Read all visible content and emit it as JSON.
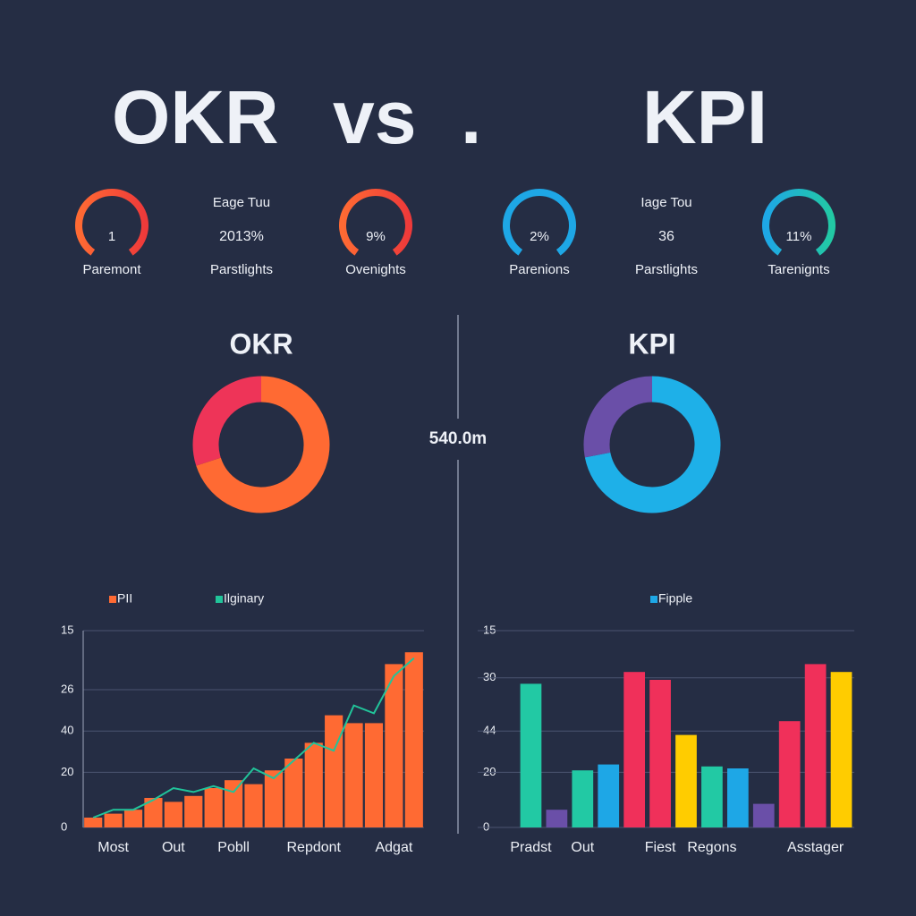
{
  "header": {
    "title": [
      "OKR",
      "vs",
      ".",
      "KPI"
    ]
  },
  "stats": [
    {
      "gauge": "1",
      "caption": "Paremont"
    },
    {
      "label": "Eage Tuu",
      "value": "2013%",
      "caption": "Parstlights"
    },
    {
      "gauge": "9%",
      "caption": "Ovenights"
    },
    {
      "gauge": "2%",
      "caption": "Parenions"
    },
    {
      "label": "Iage Tou",
      "value": "36",
      "caption": "Parstlights"
    },
    {
      "gauge": "11%",
      "caption": "Tarenignts"
    }
  ],
  "center_label": "540.0m",
  "chart_data": [
    {
      "type": "pie",
      "title": "OKR",
      "categories": [
        null,
        null
      ],
      "values": [
        70,
        30
      ],
      "colors": [
        "#ff6a33",
        "#ee3458"
      ]
    },
    {
      "type": "pie",
      "title": "KPI",
      "categories": [
        null,
        null
      ],
      "values": [
        72,
        28
      ],
      "colors": [
        "#1eb0e8",
        "#6a4fa8"
      ]
    },
    {
      "type": "bar",
      "categories": [
        null,
        "Most",
        null,
        null,
        "Out",
        null,
        null,
        "Pobll",
        null,
        null,
        null,
        "Repdont",
        null,
        null,
        null,
        "Adgat",
        null
      ],
      "series": [
        {
          "name": "PII",
          "color": "#ff6a33",
          "values": [
            5,
            7,
            9,
            15,
            13,
            16,
            20,
            24,
            22,
            29,
            35,
            43,
            57,
            53,
            53,
            83,
            89
          ]
        },
        {
          "name": "Ilginary",
          "type": "line",
          "color": "#21c49a",
          "values": [
            5,
            9,
            9,
            14,
            20,
            18,
            21,
            18,
            30,
            25,
            34,
            43,
            39,
            62,
            58,
            77,
            86
          ]
        }
      ],
      "ylim": [
        0,
        100
      ],
      "yticks": [
        0,
        {
          "value": 28,
          "label": "20"
        },
        {
          "value": 49,
          "label": "40"
        },
        {
          "value": 70,
          "label": "26"
        },
        {
          "value": 100,
          "label": "15"
        }
      ],
      "grid": true
    },
    {
      "type": "bar",
      "categories": [
        "Pradst",
        null,
        "Out",
        null,
        null,
        "Fiest",
        null,
        "Regons",
        null,
        null,
        null,
        "Asstager",
        null
      ],
      "series": [
        {
          "name": "Fipple",
          "color": "#1ea7e6",
          "values": [
            73,
            9,
            29,
            32,
            79,
            75,
            47,
            31,
            30,
            12,
            54,
            83,
            79
          ],
          "colors": [
            "#22c9a4",
            "#6a4fa8",
            "#22c9a4",
            "#1ea7e6",
            "#f0305a",
            "#f0305a",
            "#ffcc00",
            "#22c9a4",
            "#1ea7e6",
            "#6a4fa8",
            "#f0305a",
            "#f0305a",
            "#ffcc00"
          ]
        }
      ],
      "ylim": [
        0,
        100
      ],
      "yticks": [
        0,
        {
          "value": 28,
          "label": "20"
        },
        {
          "value": 49,
          "label": "44"
        },
        {
          "value": 76,
          "label": "30"
        },
        {
          "value": 100,
          "label": "15"
        }
      ],
      "grid": true
    }
  ]
}
